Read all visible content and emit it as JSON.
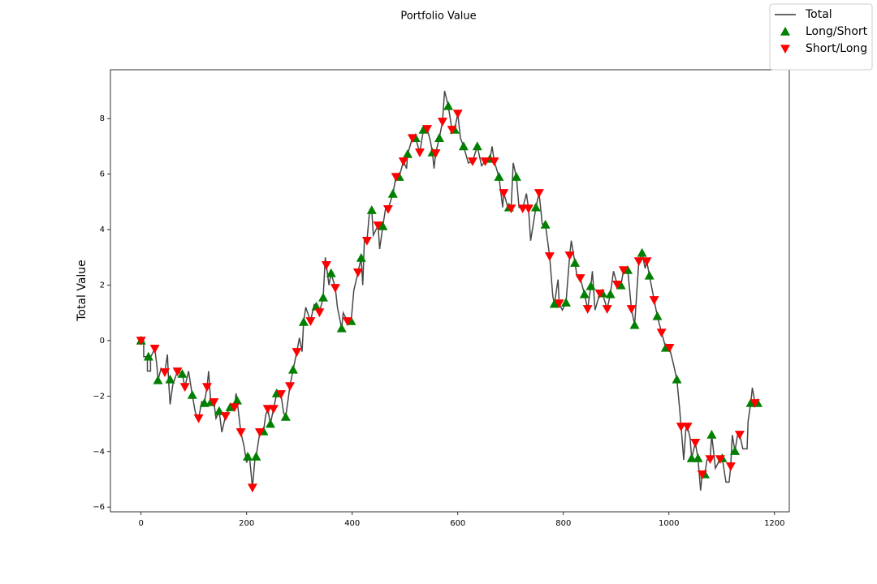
{
  "chart_data": {
    "type": "line",
    "title": "Portfolio Value",
    "y_label": "Total Value",
    "xlim": [
      -58,
      1228
    ],
    "ylim": [
      -6.17,
      9.76
    ],
    "xticks": [
      0,
      200,
      400,
      600,
      800,
      1000,
      1200
    ],
    "yticks": [
      {
        "value": -6,
        "label": "−6"
      },
      {
        "value": -4,
        "label": "−4"
      },
      {
        "value": -2,
        "label": "−2"
      },
      0,
      2,
      4,
      6,
      8
    ],
    "legend": "upper right",
    "series": [
      {
        "name": "Total",
        "type": "line",
        "color": "#333333",
        "x": [
          0,
          5,
          5,
          12,
          12,
          18,
          18,
          26,
          30,
          32,
          38,
          45,
          50,
          52,
          55,
          60,
          69,
          78,
          83,
          90,
          97,
          103,
          109,
          115,
          120,
          125,
          128,
          132,
          138,
          142,
          148,
          153,
          160,
          169,
          177,
          180,
          182,
          189,
          195,
          200,
          205,
          211,
          216,
          218,
          225,
          232,
          236,
          240,
          245,
          251,
          257,
          265,
          270,
          274,
          278,
          282,
          288,
          295,
          300,
          305,
          308,
          312,
          321,
          328,
          332,
          338,
          345,
          349,
          351,
          356,
          360,
          368,
          372,
          380,
          383,
          391,
          398,
          403,
          411,
          417,
          420,
          423,
          428,
          433,
          437,
          440,
          449,
          452,
          458,
          463,
          468,
          477,
          483,
          489,
          497,
          503,
          505,
          514,
          520,
          528,
          535,
          542,
          548,
          552,
          555,
          558,
          565,
          571,
          575,
          582,
          589,
          594,
          600,
          605,
          611,
          620,
          628,
          637,
          645,
          652,
          661,
          665,
          669,
          678,
          685,
          687,
          695,
          701,
          705,
          711,
          716,
          723,
          730,
          734,
          738,
          748,
          754,
          760,
          766,
          774,
          780,
          783,
          790,
          792,
          798,
          805,
          812,
          815,
          822,
          826,
          832,
          840,
          846,
          852,
          855,
          860,
          869,
          874,
          883,
          889,
          895,
          902,
          909,
          914,
          922,
          929,
          935,
          943,
          949,
          955,
          958,
          963,
          972,
          978,
          986,
          994,
          1001,
          1008,
          1015,
          1020,
          1023,
          1028,
          1032,
          1035,
          1040,
          1043,
          1050,
          1055,
          1060,
          1063,
          1068,
          1072,
          1078,
          1081,
          1088,
          1097,
          1101,
          1108,
          1114,
          1117,
          1120,
          1125,
          1130,
          1134,
          1140,
          1148,
          1150,
          1155,
          1158,
          1163,
          1168
        ],
        "values": [
          0,
          0,
          -0.58,
          -0.58,
          -1.1,
          -1.1,
          -0.6,
          -0.3,
          -0.9,
          -1.43,
          -1.0,
          -1.14,
          -0.5,
          -1.4,
          -2.3,
          -1.6,
          -1.1,
          -1.2,
          -1.67,
          -1.1,
          -1.96,
          -2.6,
          -2.8,
          -2.2,
          -2.25,
          -1.67,
          -1.1,
          -2.22,
          -2.22,
          -2.8,
          -2.54,
          -3.3,
          -2.72,
          -2.4,
          -2.4,
          -1.9,
          -2.16,
          -3.3,
          -3.8,
          -4.4,
          -4.1,
          -5.3,
          -4.2,
          -4.18,
          -3.3,
          -3.27,
          -2.7,
          -2.46,
          -3.0,
          -2.46,
          -1.9,
          -1.93,
          -2.6,
          -2.75,
          -2.2,
          -1.64,
          -1.05,
          -0.41,
          0.1,
          -0.4,
          0.67,
          1.2,
          0.7,
          1.3,
          1.23,
          1.02,
          1.55,
          3.0,
          2.72,
          2.0,
          2.43,
          1.9,
          1.2,
          0.44,
          1.0,
          0.7,
          0.7,
          1.8,
          2.46,
          2.98,
          2.0,
          3.6,
          3.6,
          4.7,
          4.7,
          3.8,
          4.15,
          3.3,
          4.12,
          4.74,
          4.74,
          5.29,
          5.9,
          5.9,
          6.46,
          6.2,
          6.72,
          7.3,
          7.3,
          6.78,
          7.6,
          7.63,
          7.2,
          6.78,
          6.2,
          6.75,
          7.3,
          7.89,
          9.0,
          8.45,
          7.6,
          7.6,
          8.18,
          7.3,
          7.0,
          6.4,
          6.46,
          7.0,
          6.3,
          6.46,
          6.55,
          7.0,
          6.46,
          5.9,
          4.8,
          5.32,
          4.8,
          4.76,
          6.4,
          5.9,
          4.8,
          4.76,
          5.3,
          4.76,
          3.6,
          4.8,
          5.32,
          4.2,
          4.18,
          3.04,
          1.6,
          1.32,
          2.2,
          1.34,
          1.1,
          1.37,
          3.07,
          3.6,
          2.8,
          2.3,
          2.25,
          1.67,
          1.14,
          1.96,
          2.5,
          1.1,
          1.7,
          1.7,
          1.14,
          1.67,
          2.5,
          2.02,
          1.99,
          2.54,
          2.54,
          1.14,
          0.56,
          2.86,
          3.16,
          2.6,
          2.86,
          2.34,
          1.46,
          0.88,
          0.29,
          -0.26,
          -0.26,
          -0.8,
          -1.4,
          -2.4,
          -3.1,
          -4.3,
          -3.2,
          -3.1,
          -3.5,
          -4.24,
          -3.68,
          -4.24,
          -5.4,
          -4.82,
          -4.82,
          -4.3,
          -4.27,
          -3.39,
          -4.6,
          -4.27,
          -4.24,
          -5.1,
          -5.1,
          -4.53,
          -3.4,
          -3.98,
          -3.4,
          -3.39,
          -3.9,
          -3.9,
          -2.9,
          -2.25,
          -1.7,
          -2.25,
          -2.25
        ]
      },
      {
        "name": "Long/Short",
        "type": "scatter",
        "marker": "up",
        "color": "#008000",
        "x": [
          0,
          14,
          32,
          55,
          78,
          97,
          120,
          132,
          148,
          169,
          182,
          202,
          218,
          232,
          245,
          257,
          274,
          288,
          308,
          332,
          345,
          360,
          380,
          398,
          417,
          437,
          458,
          477,
          489,
          505,
          520,
          535,
          552,
          565,
          582,
          594,
          611,
          637,
          661,
          678,
          697,
          711,
          748,
          766,
          783,
          805,
          822,
          840,
          852,
          874,
          889,
          909,
          922,
          935,
          949,
          963,
          978,
          994,
          1015,
          1043,
          1055,
          1068,
          1081,
          1101,
          1125,
          1155,
          1168
        ],
        "values": [
          0,
          -0.58,
          -1.43,
          -1.4,
          -1.2,
          -1.96,
          -2.25,
          -2.22,
          -2.54,
          -2.4,
          -2.16,
          -4.18,
          -4.18,
          -3.27,
          -3.0,
          -1.9,
          -2.75,
          -1.05,
          0.67,
          1.23,
          1.55,
          2.43,
          0.44,
          0.7,
          2.98,
          4.7,
          4.12,
          5.29,
          5.9,
          6.72,
          7.3,
          7.6,
          6.78,
          7.3,
          8.45,
          7.6,
          7.0,
          7.0,
          6.55,
          5.9,
          4.8,
          5.9,
          4.8,
          4.18,
          1.32,
          1.37,
          2.8,
          1.67,
          1.96,
          1.7,
          1.67,
          1.99,
          2.54,
          0.56,
          3.16,
          2.34,
          0.88,
          -0.26,
          -1.4,
          -4.24,
          -4.24,
          -4.82,
          -3.39,
          -4.24,
          -3.98,
          -2.25,
          -2.25
        ]
      },
      {
        "name": "Short/Long",
        "type": "scatter",
        "marker": "down",
        "color": "#ff0000",
        "x": [
          0,
          26,
          45,
          69,
          83,
          109,
          125,
          138,
          160,
          177,
          189,
          211,
          225,
          240,
          251,
          265,
          282,
          295,
          321,
          338,
          351,
          368,
          391,
          411,
          428,
          449,
          468,
          483,
          497,
          514,
          528,
          542,
          558,
          571,
          589,
          600,
          628,
          652,
          669,
          687,
          701,
          723,
          734,
          754,
          774,
          792,
          812,
          832,
          846,
          869,
          883,
          902,
          914,
          929,
          943,
          958,
          972,
          986,
          1001,
          1023,
          1035,
          1050,
          1063,
          1078,
          1097,
          1117,
          1134,
          1163
        ],
        "values": [
          0,
          -0.29,
          -1.14,
          -1.11,
          -1.67,
          -2.8,
          -1.67,
          -2.22,
          -2.72,
          -2.4,
          -3.3,
          -5.3,
          -3.3,
          -2.46,
          -2.46,
          -1.93,
          -1.64,
          -0.41,
          0.7,
          1.02,
          2.72,
          1.9,
          0.7,
          2.46,
          3.6,
          4.15,
          4.74,
          5.9,
          6.46,
          7.3,
          6.78,
          7.63,
          6.75,
          7.89,
          7.6,
          8.18,
          6.46,
          6.46,
          6.46,
          5.32,
          4.76,
          4.76,
          4.76,
          5.32,
          3.04,
          1.34,
          3.07,
          2.25,
          1.14,
          1.7,
          1.14,
          2.02,
          2.54,
          1.14,
          2.86,
          2.86,
          1.46,
          0.29,
          -0.26,
          -3.1,
          -3.1,
          -3.68,
          -4.82,
          -4.27,
          -4.27,
          -4.53,
          -3.39,
          -2.25
        ]
      }
    ]
  }
}
